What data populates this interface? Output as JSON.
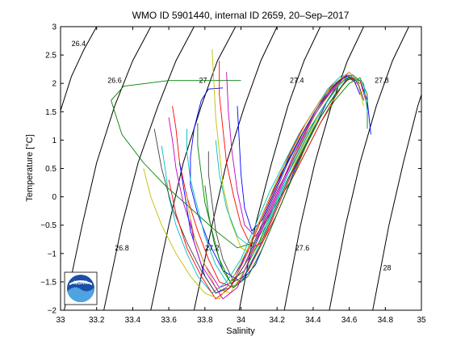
{
  "chart_data": {
    "type": "line",
    "title": "WMO ID 5901440, internal ID 2659, 20–Sep–2017",
    "xlabel": "Salinity",
    "ylabel": "Temperature [°C]",
    "xlim": [
      33,
      35
    ],
    "ylim": [
      -2,
      3
    ],
    "x_ticks": [
      "33",
      "33.2",
      "33.4",
      "33.6",
      "33.8",
      "34",
      "34.2",
      "34.4",
      "34.6",
      "34.8",
      "35"
    ],
    "y_ticks": [
      "−2",
      "−1.5",
      "−1",
      "−0.5",
      "0",
      "0.5",
      "1",
      "1.5",
      "2",
      "2.5",
      "3"
    ],
    "grid": false,
    "legend": "none",
    "isopycnals": [
      {
        "label": "26.4",
        "points": [
          [
            33.0,
            1.52
          ],
          [
            33.06,
            2.12
          ],
          [
            33.13,
            2.6
          ],
          [
            33.2,
            3.0
          ]
        ],
        "label_at": [
          33.1,
          2.7
        ]
      },
      {
        "label": "26.6",
        "points": [
          [
            33.02,
            -2.0
          ],
          [
            33.12,
            -0.5
          ],
          [
            33.2,
            0.6
          ],
          [
            33.3,
            1.6
          ],
          [
            33.4,
            2.4
          ],
          [
            33.5,
            3.0
          ]
        ],
        "label_at": [
          33.3,
          2.05
        ]
      },
      {
        "label": "26.8",
        "points": [
          [
            33.24,
            -2.0
          ],
          [
            33.34,
            -0.5
          ],
          [
            33.43,
            0.6
          ],
          [
            33.54,
            1.6
          ],
          [
            33.64,
            2.4
          ],
          [
            33.74,
            3.0
          ]
        ],
        "label_at": [
          33.34,
          -0.9
        ]
      },
      {
        "label": "27",
        "points": [
          [
            33.5,
            -2.0
          ],
          [
            33.6,
            -0.5
          ],
          [
            33.68,
            0.6
          ],
          [
            33.78,
            1.6
          ],
          [
            33.87,
            2.4
          ],
          [
            33.97,
            3.0
          ]
        ],
        "label_at": [
          33.79,
          2.05
        ]
      },
      {
        "label": "27.2",
        "points": [
          [
            33.74,
            -2.0
          ],
          [
            33.84,
            -0.5
          ],
          [
            33.92,
            0.6
          ],
          [
            34.02,
            1.6
          ],
          [
            34.11,
            2.4
          ],
          [
            34.2,
            3.0
          ]
        ],
        "label_at": [
          33.84,
          -0.9
        ]
      },
      {
        "label": "27.4",
        "points": [
          [
            33.99,
            -2.0
          ],
          [
            34.08,
            -0.5
          ],
          [
            34.17,
            0.6
          ],
          [
            34.26,
            1.6
          ],
          [
            34.35,
            2.4
          ],
          [
            34.44,
            3.0
          ]
        ],
        "label_at": [
          34.31,
          2.05
        ]
      },
      {
        "label": "27.6",
        "points": [
          [
            34.24,
            -2.0
          ],
          [
            34.33,
            -0.5
          ],
          [
            34.41,
            0.6
          ],
          [
            34.5,
            1.6
          ],
          [
            34.59,
            2.4
          ],
          [
            34.68,
            3.0
          ]
        ],
        "label_at": [
          34.34,
          -0.9
        ]
      },
      {
        "label": "27.8",
        "points": [
          [
            34.49,
            -2.0
          ],
          [
            34.58,
            -0.5
          ],
          [
            34.66,
            0.6
          ],
          [
            34.75,
            1.6
          ],
          [
            34.84,
            2.4
          ],
          [
            34.93,
            3.0
          ]
        ],
        "label_at": [
          34.78,
          2.05
        ]
      },
      {
        "label": "28",
        "points": [
          [
            34.73,
            -2.0
          ],
          [
            34.82,
            -0.5
          ],
          [
            34.9,
            0.6
          ],
          [
            34.98,
            1.6
          ],
          [
            35.0,
            1.8
          ]
        ],
        "label_at": [
          34.81,
          -1.25
        ]
      }
    ],
    "series": [
      {
        "color": "#0000ff",
        "x": [
          33.9,
          33.82,
          33.78,
          33.74,
          33.72,
          33.72,
          33.76,
          33.82,
          33.9,
          34.0,
          34.08,
          34.16,
          34.24,
          34.3,
          34.36,
          34.42,
          34.48,
          34.54,
          34.6,
          34.66,
          34.7,
          34.72
        ],
        "y": [
          1.92,
          1.9,
          1.7,
          1.2,
          0.7,
          0.2,
          -0.3,
          -0.8,
          -1.3,
          -1.5,
          -1.2,
          -0.6,
          0.0,
          0.5,
          0.9,
          1.3,
          1.7,
          2.0,
          2.1,
          2.05,
          1.7,
          1.1
        ]
      },
      {
        "color": "#008000",
        "x": [
          34.0,
          33.6,
          33.35,
          33.28,
          33.34,
          33.46,
          33.58,
          33.72,
          33.86,
          33.98,
          34.08,
          34.18,
          34.28,
          34.36,
          34.44,
          34.52,
          34.6,
          34.66,
          34.7,
          34.7
        ],
        "y": [
          2.05,
          2.05,
          1.95,
          1.7,
          1.1,
          0.6,
          0.2,
          -0.2,
          -0.6,
          -0.9,
          -0.8,
          -0.2,
          0.3,
          0.8,
          1.3,
          1.7,
          2.0,
          2.1,
          1.8,
          1.2
        ]
      },
      {
        "color": "#ff0000",
        "x": [
          33.62,
          33.64,
          33.66,
          33.7,
          33.76,
          33.82,
          33.88,
          33.96,
          34.04,
          34.12,
          34.2,
          34.28,
          34.36,
          34.44,
          34.52,
          34.6,
          34.66,
          34.7
        ],
        "y": [
          1.6,
          1.2,
          0.6,
          0.0,
          -0.6,
          -1.1,
          -1.5,
          -1.6,
          -1.3,
          -0.8,
          -0.2,
          0.4,
          0.9,
          1.4,
          1.8,
          2.1,
          2.05,
          1.6
        ]
      },
      {
        "color": "#00bfbf",
        "x": [
          33.7,
          33.7,
          33.72,
          33.76,
          33.8,
          33.86,
          33.94,
          34.0,
          34.08,
          34.16,
          34.24,
          34.32,
          34.4,
          34.48,
          34.56,
          34.62,
          34.68,
          34.7
        ],
        "y": [
          1.2,
          0.8,
          0.3,
          -0.2,
          -0.7,
          -1.2,
          -1.6,
          -1.5,
          -1.0,
          -0.4,
          0.2,
          0.7,
          1.2,
          1.6,
          1.95,
          2.15,
          2.0,
          1.5
        ]
      },
      {
        "color": "#bf00bf",
        "x": [
          33.6,
          33.62,
          33.64,
          33.68,
          33.74,
          33.8,
          33.88,
          33.96,
          34.04,
          34.12,
          34.2,
          34.28,
          34.36,
          34.44,
          34.52,
          34.58,
          34.64,
          34.68
        ],
        "y": [
          1.4,
          1.0,
          0.5,
          -0.1,
          -0.7,
          -1.2,
          -1.6,
          -1.5,
          -1.1,
          -0.5,
          0.1,
          0.6,
          1.1,
          1.5,
          1.9,
          2.1,
          2.1,
          1.7
        ]
      },
      {
        "color": "#bfbf00",
        "x": [
          33.84,
          33.85,
          33.86,
          33.88,
          33.9,
          33.94,
          34.0,
          34.06,
          34.14,
          34.22,
          34.3,
          34.38,
          34.46,
          34.54,
          34.6,
          34.66
        ],
        "y": [
          2.6,
          2.0,
          1.4,
          0.8,
          0.2,
          -0.4,
          -0.9,
          -1.0,
          -0.6,
          0.0,
          0.6,
          1.1,
          1.6,
          1.95,
          2.15,
          2.0
        ]
      },
      {
        "color": "#404040",
        "x": [
          33.82,
          33.82,
          33.84,
          33.86,
          33.9,
          33.96,
          34.02,
          34.1,
          34.18,
          34.26,
          34.34,
          34.42,
          34.5,
          34.58,
          34.64,
          34.68
        ],
        "y": [
          0.8,
          0.4,
          -0.1,
          -0.6,
          -1.1,
          -1.5,
          -1.4,
          -0.9,
          -0.3,
          0.3,
          0.8,
          1.3,
          1.7,
          2.05,
          2.1,
          1.7
        ]
      },
      {
        "color": "#0000ff",
        "x": [
          33.66,
          33.68,
          33.7,
          33.72,
          33.76,
          33.8,
          33.86,
          33.92,
          34.0,
          34.08,
          34.16,
          34.24,
          34.32,
          34.4,
          34.48,
          34.56,
          34.62,
          34.66
        ],
        "y": [
          0.6,
          0.2,
          -0.2,
          -0.6,
          -1.0,
          -1.4,
          -1.7,
          -1.6,
          -1.2,
          -0.6,
          0.0,
          0.5,
          1.0,
          1.45,
          1.85,
          2.1,
          2.1,
          1.8
        ]
      },
      {
        "color": "#008000",
        "x": [
          33.76,
          33.76,
          33.78,
          33.8,
          33.84,
          33.88,
          33.94,
          34.02,
          34.1,
          34.18,
          34.26,
          34.34,
          34.42,
          34.5,
          34.58,
          34.64
        ],
        "y": [
          1.3,
          0.9,
          0.4,
          -0.1,
          -0.6,
          -1.1,
          -1.5,
          -1.3,
          -0.8,
          -0.2,
          0.4,
          0.9,
          1.4,
          1.8,
          2.1,
          2.05
        ]
      },
      {
        "color": "#ff0000",
        "x": [
          33.88,
          33.88,
          33.9,
          33.92,
          33.96,
          34.0,
          34.06,
          34.12,
          34.2,
          34.28,
          34.36,
          34.44,
          34.52,
          34.58,
          34.64
        ],
        "y": [
          2.4,
          1.8,
          1.2,
          0.6,
          0.0,
          -0.5,
          -0.9,
          -0.8,
          -0.3,
          0.3,
          0.8,
          1.3,
          1.75,
          2.05,
          2.1
        ]
      },
      {
        "color": "#00bfbf",
        "x": [
          33.56,
          33.58,
          33.6,
          33.64,
          33.7,
          33.76,
          33.84,
          33.92,
          34.0,
          34.08,
          34.16,
          34.24,
          34.32,
          34.4,
          34.48,
          34.56,
          34.62
        ],
        "y": [
          0.9,
          0.5,
          0.0,
          -0.5,
          -1.0,
          -1.4,
          -1.7,
          -1.5,
          -1.1,
          -0.5,
          0.1,
          0.6,
          1.1,
          1.5,
          1.9,
          2.15,
          2.05
        ]
      },
      {
        "color": "#bf00bf",
        "x": [
          33.92,
          33.93,
          33.95,
          33.98,
          34.02,
          34.08,
          34.16,
          34.24,
          34.32,
          34.4,
          34.48,
          34.56,
          34.62,
          34.66
        ],
        "y": [
          2.2,
          1.5,
          0.8,
          0.1,
          -0.5,
          -0.7,
          -0.3,
          0.3,
          0.9,
          1.4,
          1.8,
          2.1,
          2.15,
          1.9
        ]
      },
      {
        "color": "#bfbf00",
        "x": [
          33.7,
          33.72,
          33.75,
          33.8,
          33.86,
          33.94,
          34.02,
          34.1,
          34.18,
          34.26,
          34.34,
          34.42,
          34.5,
          34.58,
          34.64,
          34.68
        ],
        "y": [
          0.0,
          -0.4,
          -0.8,
          -1.2,
          -1.6,
          -1.7,
          -1.3,
          -0.7,
          -0.1,
          0.5,
          1.0,
          1.5,
          1.85,
          2.1,
          2.1,
          1.6
        ]
      },
      {
        "color": "#404040",
        "x": [
          33.52,
          33.56,
          33.62,
          33.7,
          33.78,
          33.86,
          33.94,
          34.02,
          34.1,
          34.18,
          34.26,
          34.34,
          34.42,
          34.5,
          34.58,
          34.64
        ],
        "y": [
          1.2,
          0.5,
          -0.2,
          -0.8,
          -1.3,
          -1.7,
          -1.6,
          -1.2,
          -0.6,
          0.0,
          0.6,
          1.1,
          1.55,
          1.9,
          2.15,
          2.0
        ]
      },
      {
        "color": "#0000ff",
        "x": [
          33.98,
          33.99,
          34.0,
          34.02,
          34.06,
          34.12,
          34.2,
          34.28,
          34.36,
          34.44,
          34.52,
          34.6,
          34.66
        ],
        "y": [
          1.6,
          1.0,
          0.4,
          -0.2,
          -0.6,
          -0.4,
          0.2,
          0.8,
          1.3,
          1.7,
          2.0,
          2.15,
          2.0
        ]
      },
      {
        "color": "#008000",
        "x": [
          33.8,
          33.82,
          33.85,
          33.9,
          33.96,
          34.04,
          34.12,
          34.2,
          34.28,
          34.36,
          34.44,
          34.52,
          34.6,
          34.66
        ],
        "y": [
          0.2,
          -0.3,
          -0.8,
          -1.3,
          -1.6,
          -1.4,
          -0.9,
          -0.3,
          0.3,
          0.9,
          1.4,
          1.8,
          2.1,
          2.05
        ]
      },
      {
        "color": "#ff0000",
        "x": [
          33.6,
          33.64,
          33.7,
          33.78,
          33.86,
          33.94,
          34.02,
          34.1,
          34.18,
          34.26,
          34.34,
          34.42,
          34.5,
          34.58,
          34.64
        ],
        "y": [
          0.3,
          -0.3,
          -0.9,
          -1.4,
          -1.8,
          -1.6,
          -1.1,
          -0.5,
          0.1,
          0.7,
          1.2,
          1.6,
          1.95,
          2.15,
          2.05
        ]
      },
      {
        "color": "#00bfbf",
        "x": [
          33.86,
          33.88,
          33.92,
          33.98,
          34.06,
          34.14,
          34.22,
          34.3,
          34.38,
          34.46,
          34.54,
          34.6,
          34.66
        ],
        "y": [
          1.0,
          0.4,
          -0.2,
          -0.7,
          -0.9,
          -0.5,
          0.1,
          0.7,
          1.2,
          1.6,
          1.95,
          2.15,
          2.0
        ]
      },
      {
        "color": "#bf00bf",
        "x": [
          33.72,
          33.74,
          33.78,
          33.84,
          33.9,
          33.98,
          34.06,
          34.14,
          34.22,
          34.3,
          34.38,
          34.46,
          34.54,
          34.6,
          34.66
        ],
        "y": [
          -0.4,
          -0.8,
          -1.2,
          -1.5,
          -1.8,
          -1.6,
          -1.0,
          -0.4,
          0.2,
          0.8,
          1.3,
          1.7,
          2.0,
          2.2,
          2.0
        ]
      },
      {
        "color": "#bfbf00",
        "x": [
          33.46,
          33.5,
          33.56,
          33.64,
          33.72,
          33.8,
          33.88,
          33.96,
          34.04,
          34.12,
          34.2,
          34.28,
          34.36,
          34.44,
          34.52,
          34.6,
          34.66
        ],
        "y": [
          0.5,
          0.0,
          -0.5,
          -1.0,
          -1.4,
          -1.7,
          -1.8,
          -1.4,
          -0.9,
          -0.3,
          0.3,
          0.8,
          1.3,
          1.7,
          2.0,
          2.2,
          2.0
        ]
      }
    ]
  },
  "logo": {
    "text": "NOAA",
    "colors": {
      "blue": "#1c4fa6",
      "light": "#4fa3e0",
      "white": "#ffffff"
    }
  }
}
